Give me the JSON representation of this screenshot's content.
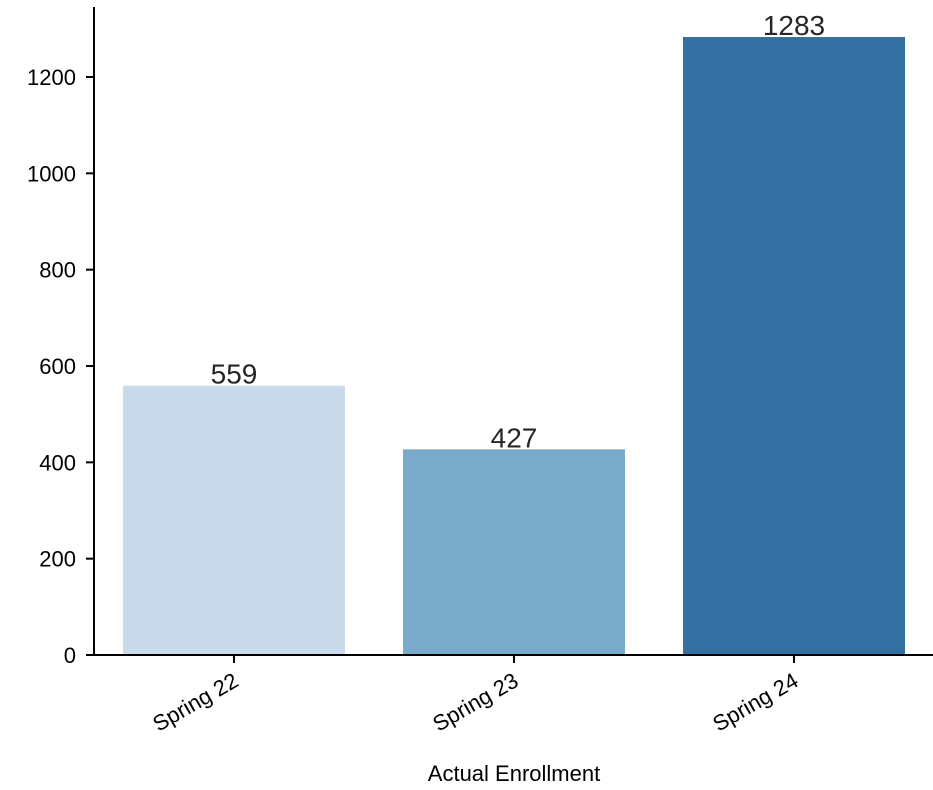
{
  "chart_data": {
    "type": "bar",
    "categories": [
      "Spring 22",
      "Spring 23",
      "Spring 24"
    ],
    "values": [
      559,
      427,
      1283
    ],
    "data_labels": [
      "559",
      "427",
      "1283"
    ],
    "colors": [
      "#c9dbea",
      "#7aaac9",
      "#346fa2"
    ],
    "title": "",
    "xlabel": "Actual Enrollment",
    "ylabel": "",
    "ylim": [
      0,
      1350
    ],
    "yticks": [
      0,
      200,
      400,
      600,
      800,
      1000,
      1200
    ],
    "ytick_labels": [
      "0",
      "200",
      "400",
      "600",
      "800",
      "1000",
      "1200"
    ],
    "grid": false,
    "legend": "none"
  }
}
